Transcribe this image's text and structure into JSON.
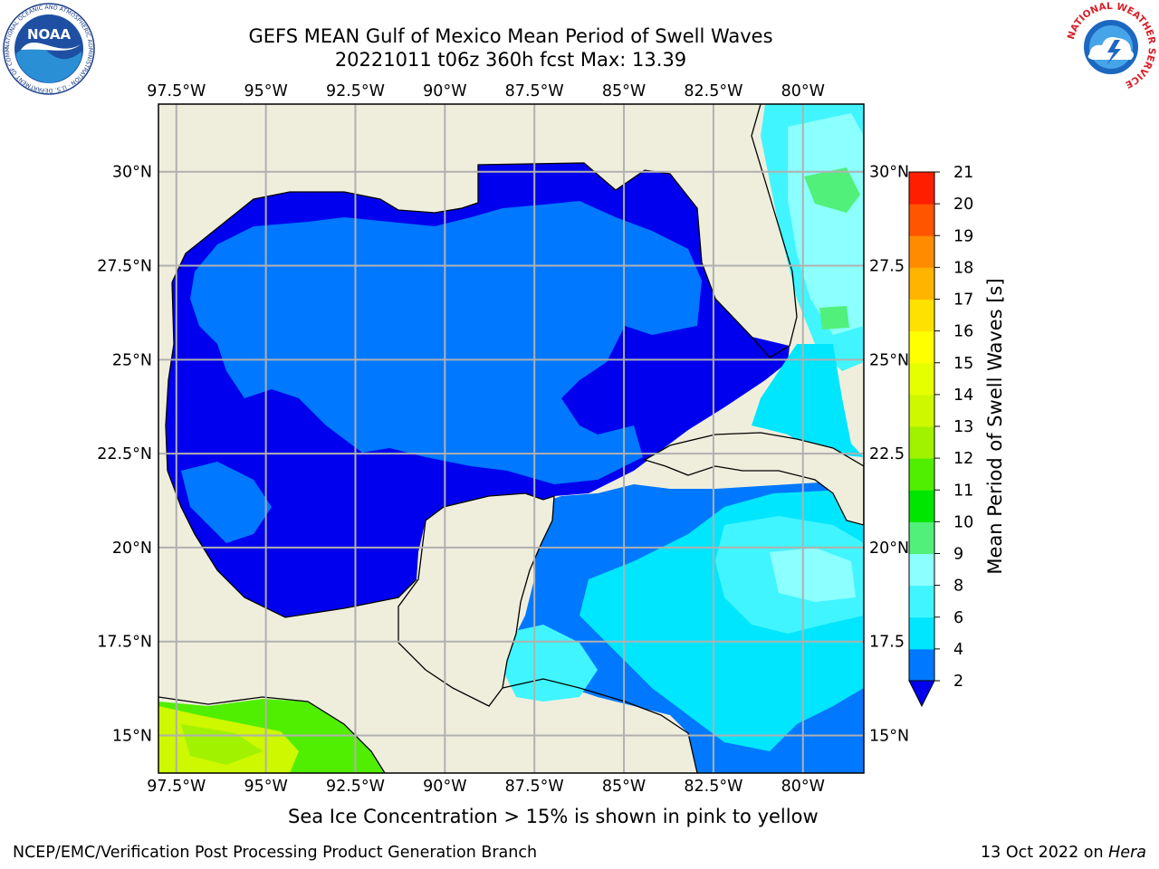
{
  "header": {
    "title_line1": "GEFS MEAN Gulf of Mexico Mean Period of Swell Waves",
    "title_line2": "20221011 t06z 360h fcst   Max: 13.39"
  },
  "logos": {
    "noaa_text": "NOAA",
    "noaa_ring_text": "NATIONAL OCEANIC AND ATMOSPHERIC ADMINISTRATION · U.S. DEPARTMENT OF COMMERCE",
    "nws_ring_text": "NATIONAL WEATHER SERVICE"
  },
  "map": {
    "lon_labels": [
      "97.5°W",
      "95°W",
      "92.5°W",
      "90°W",
      "87.5°W",
      "85°W",
      "82.5°W",
      "80°W"
    ],
    "lon_values": [
      -97.5,
      -95,
      -92.5,
      -90,
      -87.5,
      -85,
      -82.5,
      -80
    ],
    "lat_labels_left": [
      "30°N",
      "27.5°N",
      "25°N",
      "22.5°N",
      "20°N",
      "17.5°N",
      "15°N"
    ],
    "lat_labels_right": [
      "30°N",
      "27.5",
      "25°N",
      "22.5",
      "20°N",
      "17.5",
      "15°N"
    ],
    "lat_values": [
      30,
      27.5,
      25,
      22.5,
      20,
      17.5,
      15
    ],
    "extent": {
      "lon_min": -98,
      "lon_max": -78.3,
      "lat_min": 14,
      "lat_max": 31.8
    },
    "colors": {
      "land": "#efeedd",
      "grid": "#b0b0b0"
    }
  },
  "colorbar": {
    "label": "Mean Period of Swell Waves [s]",
    "ticks": [
      "2",
      "4",
      "6",
      "8",
      "9",
      "10",
      "11",
      "12",
      "13",
      "14",
      "15",
      "16",
      "17",
      "18",
      "19",
      "20",
      "21"
    ],
    "colors": [
      "#0078ff",
      "#00e6ff",
      "#40f5ff",
      "#8cffff",
      "#50f07a",
      "#00e600",
      "#50ee00",
      "#a0f200",
      "#cdf800",
      "#e6ff00",
      "#ffff00",
      "#ffe100",
      "#ffb400",
      "#ff8c00",
      "#ff5500",
      "#ff1e00"
    ],
    "under_color": "#0000ee"
  },
  "footer": {
    "ice_note": "Sea Ice Concentration > 15% is shown in pink to yellow",
    "left": "NCEP/EMC/Verification Post Processing Product Generation Branch",
    "right_prefix": "13 Oct 2022 on ",
    "right_host": "Hera"
  }
}
